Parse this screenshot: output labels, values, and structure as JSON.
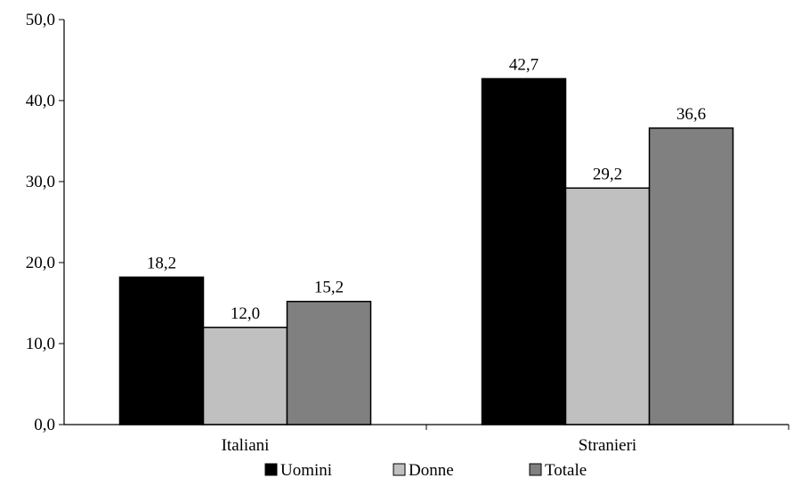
{
  "chart_data": {
    "type": "bar",
    "categories": [
      "Italiani",
      "Stranieri"
    ],
    "series": [
      {
        "name": "Uomini",
        "values": [
          18.2,
          42.7
        ],
        "labels": [
          "18,2",
          "42,7"
        ],
        "color": "#000000"
      },
      {
        "name": "Donne",
        "values": [
          12.0,
          29.2
        ],
        "labels": [
          "12,0",
          "29,2"
        ],
        "color": "#c0c0c0"
      },
      {
        "name": "Totale",
        "values": [
          15.2,
          36.6
        ],
        "labels": [
          "15,2",
          "36,6"
        ],
        "color": "#808080"
      }
    ],
    "ylim": [
      0,
      50
    ],
    "yticks": [
      0,
      10,
      20,
      30,
      40,
      50
    ],
    "ytick_labels": [
      "0,0",
      "10,0",
      "20,0",
      "30,0",
      "40,0",
      "50,0"
    ],
    "title": "",
    "xlabel": "",
    "ylabel": "",
    "grid": false,
    "legend_position": "bottom"
  }
}
